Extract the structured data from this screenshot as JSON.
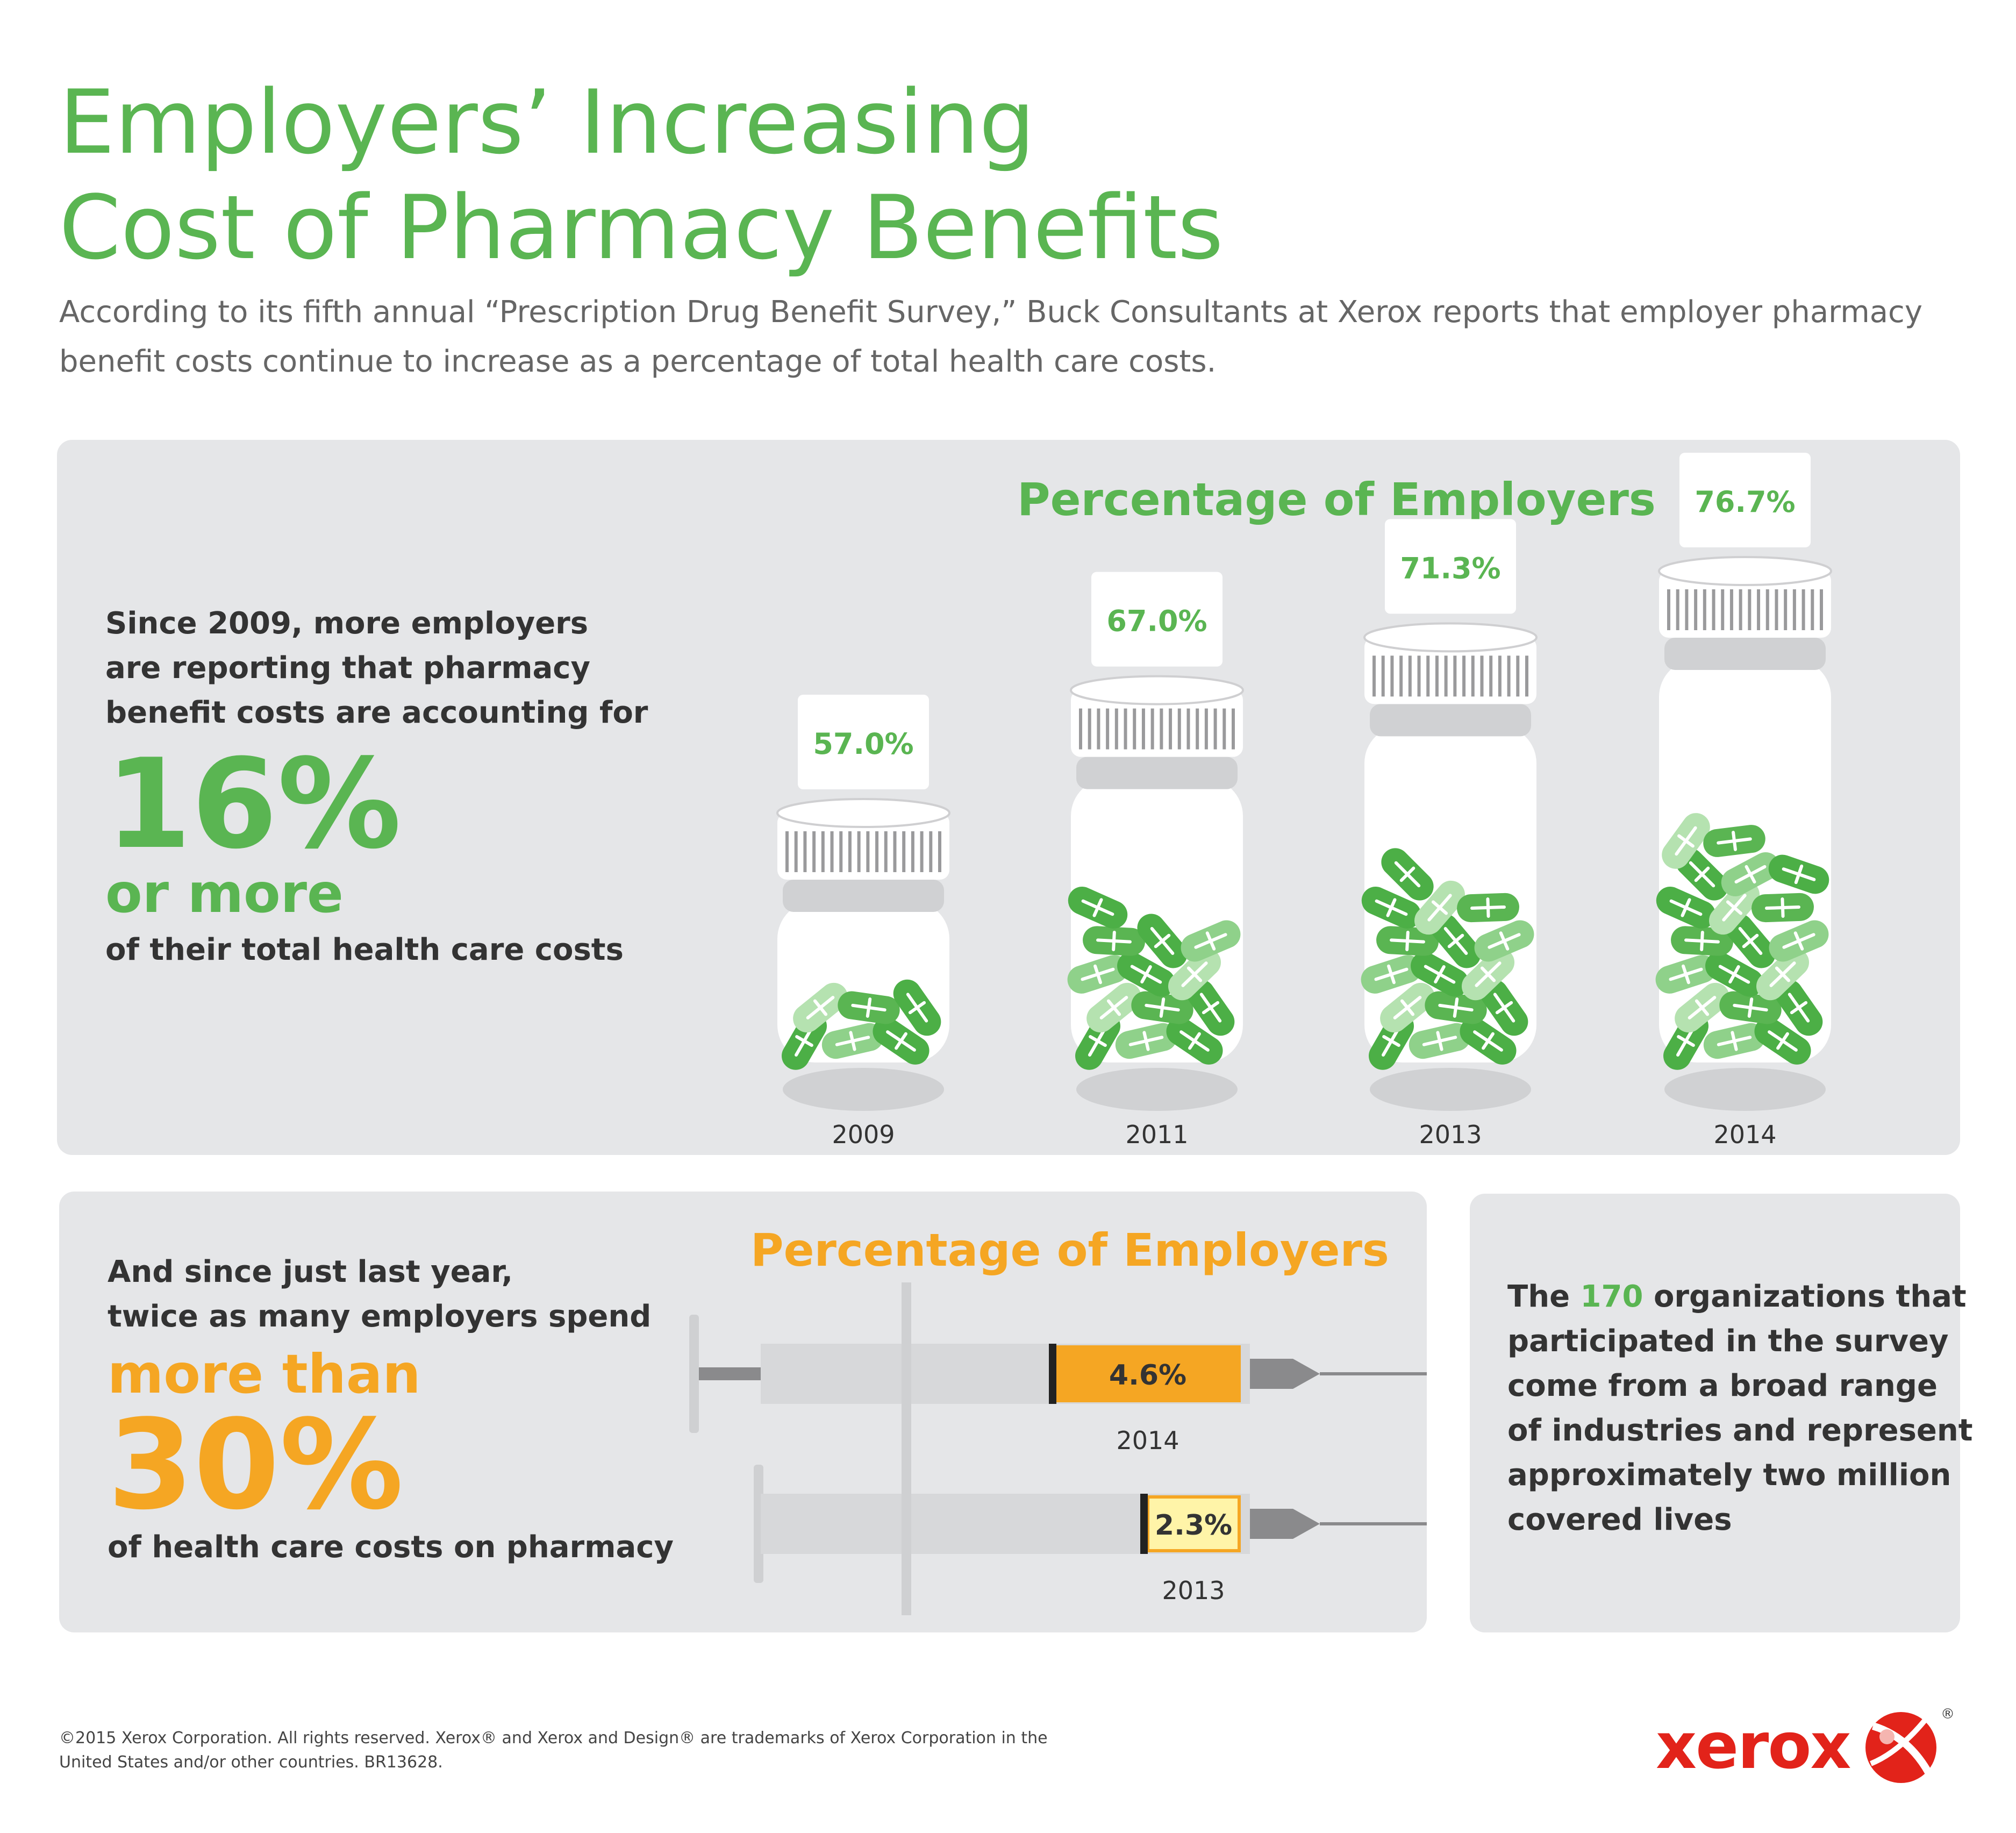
{
  "header": {
    "title_line1": "Employers’ Increasing",
    "title_line2": "Cost of Pharmacy Benefits",
    "intro": "According to its fifth annual “Prescription Drug Benefit Survey,” Buck Consultants at Xerox reports that employer pharmacy benefit costs continue to increase as a percentage of total health care costs."
  },
  "section1": {
    "line1": "Since 2009, more employers",
    "line2": "are reporting that pharmacy",
    "line3": "benefit costs are accounting for",
    "big": "16%",
    "sub": "or more",
    "line4": "of their total health care costs"
  },
  "section2": {
    "line1": "And since just last year,",
    "line2": "twice as many employers spend",
    "sub": "more than",
    "big": "30%",
    "line3": "of health care costs on pharmacy"
  },
  "section3": {
    "pre": "The ",
    "number": "170",
    "post": " organizations that",
    "line2": "participated in the survey",
    "line3": "come from a broad range",
    "line4": "of industries and represent",
    "line5": "approximately two million",
    "line6": "covered lives"
  },
  "footer": {
    "line1": "©2015 Xerox Corporation. All rights reserved. Xerox® and Xerox and Design® are trademarks of Xerox Corporation in the",
    "line2": "United States and/or other countries. BR13628."
  },
  "brand": {
    "name": "xerox",
    "mark": "®",
    "color": "#e2231a"
  },
  "colors": {
    "green": "#5ab552",
    "orange": "#f5a623",
    "light_yellow": "#fff4a8",
    "panel": "#e5e6e8"
  },
  "chart_data": [
    {
      "type": "bar",
      "title": "Percentage of Employers",
      "categories": [
        "2009",
        "2011",
        "2013",
        "2014"
      ],
      "values": [
        57.0,
        67.0,
        71.3,
        76.7
      ],
      "labels": [
        "57.0%",
        "67.0%",
        "71.3%",
        "76.7%"
      ],
      "unit": "%",
      "ylim": [
        0,
        100
      ],
      "grid": false,
      "legend": "none"
    },
    {
      "type": "bar",
      "title": "Percentage of Employers",
      "categories": [
        "2014",
        "2013"
      ],
      "values": [
        4.6,
        2.3
      ],
      "labels": [
        "4.6%",
        "2.3%"
      ],
      "unit": "%",
      "orientation": "horizontal",
      "grid": false,
      "legend": "none"
    }
  ]
}
